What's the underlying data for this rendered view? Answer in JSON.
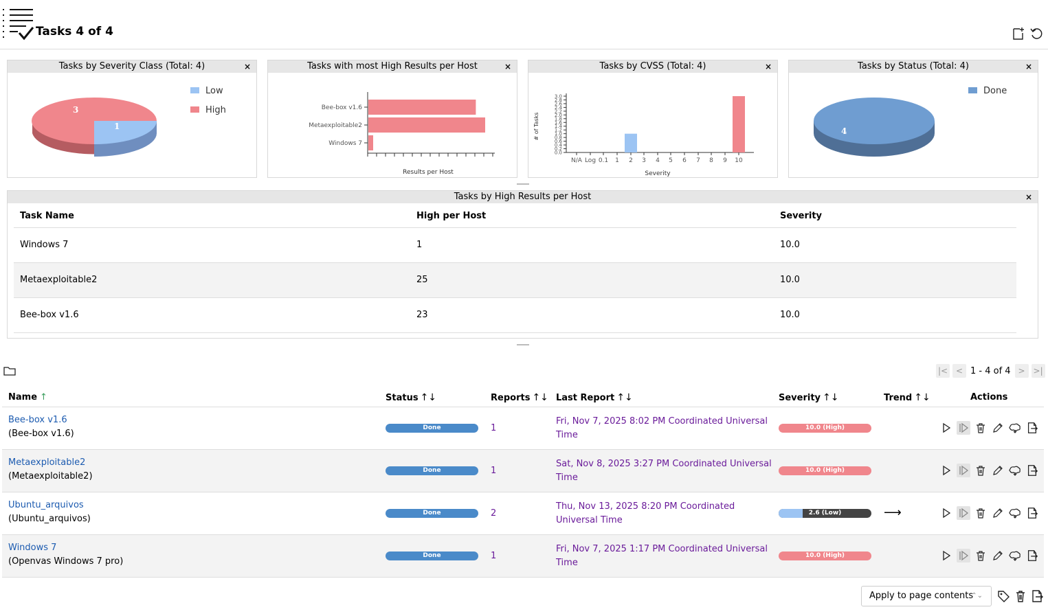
{
  "header": {
    "title": "Tasks 4 of 4"
  },
  "dashboard": {
    "severity_class": {
      "title": "Tasks by Severity Class (Total: 4)",
      "close": "×",
      "legend": [
        "Low",
        "High"
      ],
      "slices": [
        {
          "label": "Low",
          "value": 1,
          "color": "#9cc4f3"
        },
        {
          "label": "High",
          "value": 3,
          "color": "#f0868c"
        }
      ]
    },
    "most_high": {
      "title": "Tasks with most High Results per Host",
      "close": "×",
      "xlabel": "Results per Host",
      "bars": [
        {
          "label": "Bee-box v1.6",
          "value": 23
        },
        {
          "label": "Metaexploitable2",
          "value": 25
        },
        {
          "label": "Windows 7",
          "value": 1
        }
      ]
    },
    "cvss": {
      "title": "Tasks by CVSS (Total: 4)",
      "close": "×",
      "xlabel": "Severity",
      "ylabel": "# of Tasks",
      "xticks": [
        "N/A",
        "Log",
        "0.1",
        "1",
        "2",
        "3",
        "4",
        "5",
        "6",
        "7",
        "8",
        "9",
        "10"
      ],
      "yticks": [
        "0.0",
        "0.2",
        "0.4",
        "0.6",
        "0.8",
        "1.0",
        "1.2",
        "1.4",
        "1.6",
        "1.8",
        "2.0",
        "2.2",
        "2.4",
        "2.6",
        "2.8",
        "3.0"
      ]
    },
    "status": {
      "title": "Tasks by Status (Total: 4)",
      "close": "×",
      "legend": [
        "Done"
      ],
      "slices": [
        {
          "label": "Done",
          "value": 4,
          "color": "#6f9dd1"
        }
      ]
    }
  },
  "chart_data": [
    {
      "type": "pie",
      "title": "Tasks by Severity Class (Total: 4)",
      "categories": [
        "Low",
        "High"
      ],
      "values": [
        1,
        3
      ]
    },
    {
      "type": "bar",
      "title": "Tasks with most High Results per Host",
      "categories": [
        "Bee-box v1.6",
        "Metaexploitable2",
        "Windows 7"
      ],
      "values": [
        23,
        25,
        1
      ],
      "xlabel": "Results per Host"
    },
    {
      "type": "bar",
      "title": "Tasks by CVSS (Total: 4)",
      "categories": [
        "N/A",
        "Log",
        "0.1",
        "1",
        "2",
        "3",
        "4",
        "5",
        "6",
        "7",
        "8",
        "9",
        "10"
      ],
      "values": [
        0,
        0,
        0,
        0,
        1,
        0,
        0,
        0,
        0,
        0,
        0,
        0,
        3
      ],
      "xlabel": "Severity",
      "ylabel": "# of Tasks",
      "ylim": [
        0,
        3
      ]
    },
    {
      "type": "pie",
      "title": "Tasks by Status (Total: 4)",
      "categories": [
        "Done"
      ],
      "values": [
        4
      ]
    }
  ],
  "high_table": {
    "title": "Tasks by High Results per Host",
    "close": "×",
    "headers": [
      "Task Name",
      "High per Host",
      "Severity"
    ],
    "rows": [
      [
        "Windows 7",
        "1",
        "10.0"
      ],
      [
        "Metaexploitable2",
        "25",
        "10.0"
      ],
      [
        "Bee-box v1.6",
        "23",
        "10.0"
      ]
    ]
  },
  "pager": {
    "text": "1 - 4 of 4"
  },
  "tasks_table": {
    "headers": {
      "name": "Name",
      "status": "Status",
      "reports": "Reports",
      "last_report": "Last Report",
      "severity": "Severity",
      "trend": "Trend",
      "actions": "Actions"
    },
    "sort_both": "↑↓",
    "sort_up": "↑",
    "rows": [
      {
        "name": "Bee-box v1.6",
        "comment": "(Bee-box v1.6)",
        "status": "Done",
        "reports": "1",
        "last_report": "Fri, Nov 7, 2025 8:02 PM Coordinated Universal Time",
        "severity": "10.0 (High)",
        "trend": ""
      },
      {
        "name": "Metaexploitable2",
        "comment": "(Metaexploitable2)",
        "status": "Done",
        "reports": "1",
        "last_report": "Sat, Nov 8, 2025 3:27 PM Coordinated Universal Time",
        "severity": "10.0 (High)",
        "trend": ""
      },
      {
        "name": "Ubuntu_arquivos",
        "comment": "(Ubuntu_arquivos)",
        "status": "Done",
        "reports": "2",
        "last_report": "Thu, Nov 13, 2025 8:20 PM Coordinated Universal Time",
        "severity": "2.6 (Low)",
        "trend": "⟶"
      },
      {
        "name": "Windows 7",
        "comment": "(Openvas Windows 7 pro)",
        "status": "Done",
        "reports": "1",
        "last_report": "Fri, Nov 7, 2025 1:17 PM Coordinated Universal Time",
        "severity": "10.0 (High)",
        "trend": ""
      }
    ]
  },
  "bulk": {
    "apply_value": "Apply to page contents",
    "chevron": "⌃⌄"
  }
}
